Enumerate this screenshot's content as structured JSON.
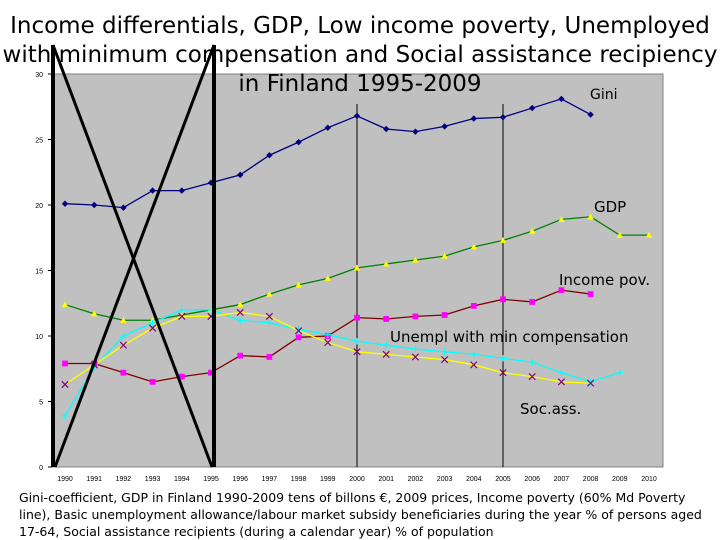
{
  "title": "Income differentials, GDP, Low income poverty, Unemployed\nwith minimum compensation and Social assistance recipiency\nin Finland 1995-2009",
  "caption": "Gini-coefficient, GDP in Finland 1990-2009 tens of billons €, 2009 prices, Income poverty (60% Md Poverty line), Basic unemployment allowance/labour market subsidy beneficiaries during the year % of persons aged 17-64, Social assistance recipients (during a calendar year) % of population",
  "chart_data": {
    "type": "line",
    "x": [
      1990,
      1991,
      1992,
      1993,
      1994,
      1995,
      1996,
      1997,
      1998,
      1999,
      2000,
      2001,
      2002,
      2003,
      2004,
      2005,
      2006,
      2007,
      2008,
      2009,
      2010
    ],
    "ylim": [
      0,
      30
    ],
    "yticks": [
      0,
      5,
      10,
      15,
      20,
      25,
      30
    ],
    "vertical_markers": [
      2000,
      2005
    ],
    "cross_out_range": [
      1990,
      1995
    ],
    "series": [
      {
        "name": "Gini",
        "label": "Gini",
        "color": "#000080",
        "marker": "diamond",
        "values": [
          20.1,
          20.0,
          19.8,
          21.1,
          21.1,
          21.7,
          22.3,
          23.8,
          24.8,
          25.9,
          26.8,
          25.8,
          25.6,
          26.0,
          26.6,
          26.7,
          27.4,
          28.1,
          26.9,
          null,
          null
        ]
      },
      {
        "name": "GDP",
        "label": "GDP",
        "color": "#008000",
        "marker": "triangle",
        "markerColor": "#ffff00",
        "values": [
          12.4,
          11.7,
          11.2,
          11.2,
          11.6,
          12.0,
          12.4,
          13.2,
          13.9,
          14.4,
          15.2,
          15.5,
          15.8,
          16.1,
          16.8,
          17.3,
          18.0,
          18.9,
          19.1,
          17.7,
          17.7
        ]
      },
      {
        "name": "Income poverty",
        "label": "Income pov.",
        "color": "#800000",
        "marker": "square",
        "markerColor": "#ff00ff",
        "values": [
          7.9,
          7.9,
          7.2,
          6.5,
          6.9,
          7.2,
          8.5,
          8.4,
          9.9,
          10.0,
          11.4,
          11.3,
          11.5,
          11.6,
          12.3,
          12.8,
          12.6,
          13.5,
          13.2,
          null,
          null
        ]
      },
      {
        "name": "Unempl with min compensation",
        "label": "Unempl with min compensation",
        "color": "#00ffff",
        "marker": "plus",
        "values": [
          3.9,
          7.6,
          10.0,
          11.0,
          12.0,
          12.0,
          11.2,
          11.0,
          10.5,
          10.1,
          9.6,
          9.3,
          9.0,
          8.8,
          8.6,
          8.3,
          8.0,
          7.2,
          6.5,
          7.2,
          null
        ]
      },
      {
        "name": "Social assistance recipients",
        "label": "Soc.ass.",
        "color": "#ffff00",
        "marker": "x",
        "markerColor": "#800080",
        "values": [
          6.3,
          7.8,
          9.3,
          10.6,
          11.5,
          11.5,
          11.8,
          11.5,
          10.4,
          9.5,
          8.8,
          8.6,
          8.4,
          8.2,
          7.8,
          7.2,
          6.9,
          6.5,
          6.4,
          null,
          null
        ]
      }
    ]
  }
}
